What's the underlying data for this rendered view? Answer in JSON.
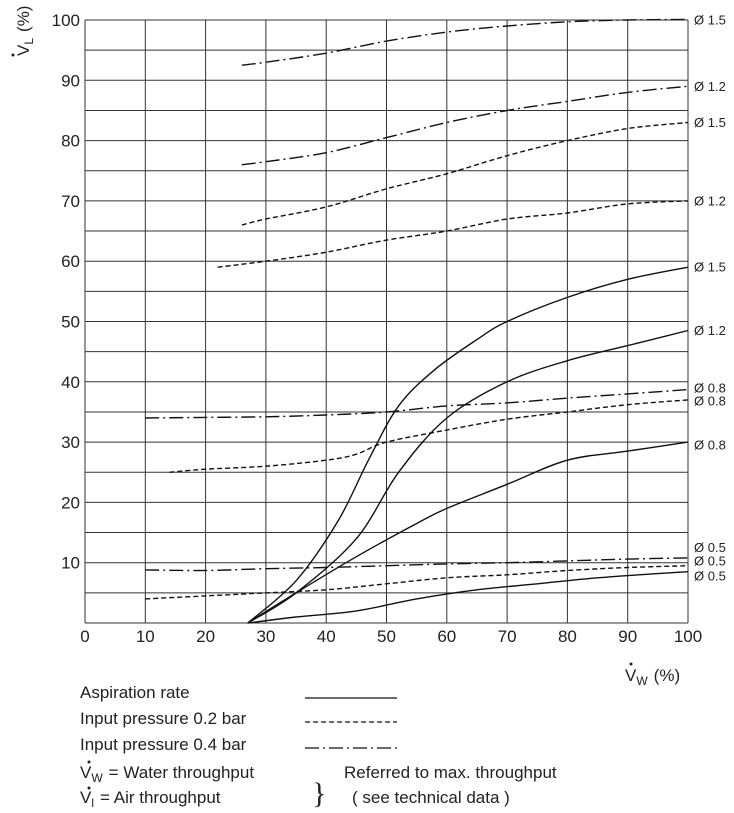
{
  "chart_data": {
    "type": "line",
    "xlabel_main": "V",
    "xlabel_sub": "W",
    "xlabel_unit": "(%)",
    "ylabel_main": "V",
    "ylabel_sub": "L",
    "ylabel_unit": "(%)",
    "xlim": [
      0,
      100
    ],
    "ylim": [
      0,
      100
    ],
    "x_ticks": [
      0,
      10,
      20,
      30,
      40,
      50,
      60,
      70,
      80,
      90,
      100
    ],
    "y_ticks": [
      10,
      20,
      30,
      40,
      50,
      60,
      70,
      80,
      90,
      100
    ],
    "grid": true,
    "series": [
      {
        "name": "Ø 0.5",
        "style": "solid",
        "x": [
          27,
          35,
          45,
          55,
          65,
          75,
          85,
          95,
          100
        ],
        "y": [
          0,
          1,
          2,
          4,
          5.5,
          6.5,
          7.5,
          8.2,
          8.5
        ]
      },
      {
        "name": "Ø 0.8",
        "style": "solid",
        "x": [
          27,
          35,
          45,
          55,
          60,
          70,
          80,
          90,
          100
        ],
        "y": [
          0,
          5,
          11,
          16.5,
          19,
          23,
          27,
          28.5,
          30
        ]
      },
      {
        "name": "Ø 1.2",
        "style": "solid",
        "x": [
          27,
          35,
          45,
          52,
          60,
          70,
          80,
          90,
          100
        ],
        "y": [
          0,
          5,
          14,
          25,
          34,
          40,
          43.5,
          46,
          48.5
        ]
      },
      {
        "name": "Ø 1.5",
        "style": "solid",
        "x": [
          27,
          35,
          42,
          47,
          52,
          58,
          65,
          70,
          80,
          90,
          100
        ],
        "y": [
          0,
          7,
          17,
          27,
          36,
          42,
          47,
          50,
          54,
          57,
          59
        ]
      },
      {
        "name": "Ø 0.5",
        "style": "dashed",
        "x": [
          10,
          20,
          30,
          40,
          50,
          60,
          70,
          80,
          90,
          100
        ],
        "y": [
          4,
          4.5,
          5,
          5.5,
          6.5,
          7.5,
          8,
          8.7,
          9.2,
          9.5
        ]
      },
      {
        "name": "Ø 0.8",
        "style": "dashed",
        "x": [
          14,
          20,
          30,
          40,
          45,
          50,
          60,
          70,
          80,
          90,
          100
        ],
        "y": [
          25,
          25.5,
          26,
          27,
          28,
          30,
          32,
          33.8,
          35,
          36.2,
          37
        ]
      },
      {
        "name": "Ø 1.2",
        "style": "dashed",
        "x": [
          22,
          30,
          40,
          50,
          60,
          70,
          80,
          90,
          100
        ],
        "y": [
          59,
          60,
          61.5,
          63.5,
          65,
          67,
          68,
          69.5,
          70
        ]
      },
      {
        "name": "Ø 1.5",
        "style": "dashed",
        "x": [
          26,
          30,
          40,
          50,
          60,
          70,
          80,
          90,
          100
        ],
        "y": [
          66,
          67,
          69,
          72,
          74.5,
          77.5,
          80,
          82,
          83
        ]
      },
      {
        "name": "Ø 0.5",
        "style": "dashdot",
        "x": [
          10,
          20,
          30,
          40,
          50,
          60,
          70,
          80,
          90,
          100
        ],
        "y": [
          8.8,
          8.7,
          9,
          9.2,
          9.5,
          9.8,
          10,
          10.3,
          10.6,
          10.8
        ]
      },
      {
        "name": "Ø 0.8",
        "style": "dashdot",
        "x": [
          10,
          20,
          30,
          40,
          50,
          60,
          70,
          80,
          90,
          100
        ],
        "y": [
          34,
          34.1,
          34.2,
          34.5,
          35,
          36,
          36.5,
          37.3,
          38,
          38.7
        ]
      },
      {
        "name": "Ø 1.2",
        "style": "dashdot",
        "x": [
          26,
          30,
          40,
          50,
          60,
          70,
          80,
          90,
          100
        ],
        "y": [
          76,
          76.5,
          78,
          80.5,
          83,
          85,
          86.5,
          88,
          89
        ]
      },
      {
        "name": "Ø 1.5",
        "style": "dashdot",
        "x": [
          26,
          30,
          40,
          50,
          60,
          70,
          80,
          90,
          100
        ],
        "y": [
          92.5,
          93,
          94.5,
          96.5,
          98,
          99,
          99.7,
          100,
          100.1
        ]
      }
    ],
    "curve_labels": [
      {
        "text": "Ø 1.5",
        "y": 100
      },
      {
        "text": "Ø 1.2",
        "y": 89
      },
      {
        "text": "Ø 1.5",
        "y": 83
      },
      {
        "text": "Ø 1.2",
        "y": 70
      },
      {
        "text": "Ø 1.5",
        "y": 59
      },
      {
        "text": "Ø 1.2",
        "y": 48.5
      },
      {
        "text": "Ø 0.8",
        "y": 39
      },
      {
        "text": "Ø 0.8",
        "y": 36.8
      },
      {
        "text": "Ø 0.8",
        "y": 29.5
      },
      {
        "text": "Ø 0.5",
        "y": 12.5
      },
      {
        "text": "Ø 0.5",
        "y": 10.3
      },
      {
        "text": "Ø 0.5",
        "y": 7.8
      }
    ]
  },
  "legend": {
    "items": [
      {
        "label": "Aspiration rate",
        "style": "solid"
      },
      {
        "label": "Input pressure 0.2 bar",
        "style": "dashed"
      },
      {
        "label": "Input pressure 0.4 bar",
        "style": "dashdot"
      }
    ],
    "definitions": [
      {
        "symbol": "V",
        "sub": "W",
        "text": "= Water throughput"
      },
      {
        "symbol": "V",
        "sub": "l",
        "text": "= Air throughput"
      }
    ],
    "brace": "}",
    "note_line1": "Referred to max. throughput",
    "note_line2": "( see technical data )"
  }
}
